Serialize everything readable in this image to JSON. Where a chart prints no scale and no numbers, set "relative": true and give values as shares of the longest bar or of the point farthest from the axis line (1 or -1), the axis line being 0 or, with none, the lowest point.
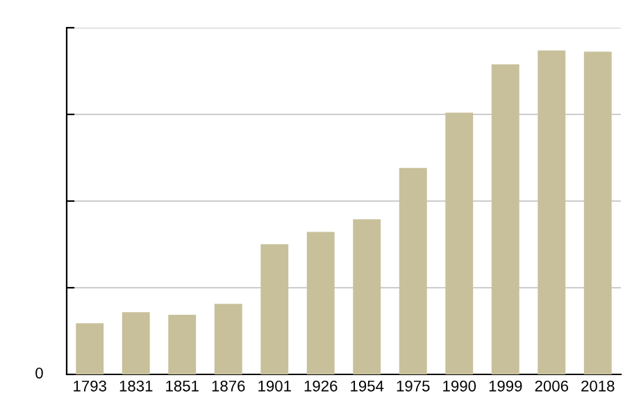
{
  "chart_data": {
    "type": "bar",
    "relative": true,
    "categories": [
      "1793",
      "1831",
      "1851",
      "1876",
      "1901",
      "1926",
      "1954",
      "1975",
      "1990",
      "1999",
      "2006",
      "2018"
    ],
    "values": [
      0.158,
      0.192,
      0.184,
      0.218,
      0.402,
      0.44,
      0.479,
      0.637,
      0.808,
      0.957,
      1,
      0.996
    ],
    "color": "#c8c09a",
    "annotations": [
      "0"
    ],
    "grid": "y"
  }
}
